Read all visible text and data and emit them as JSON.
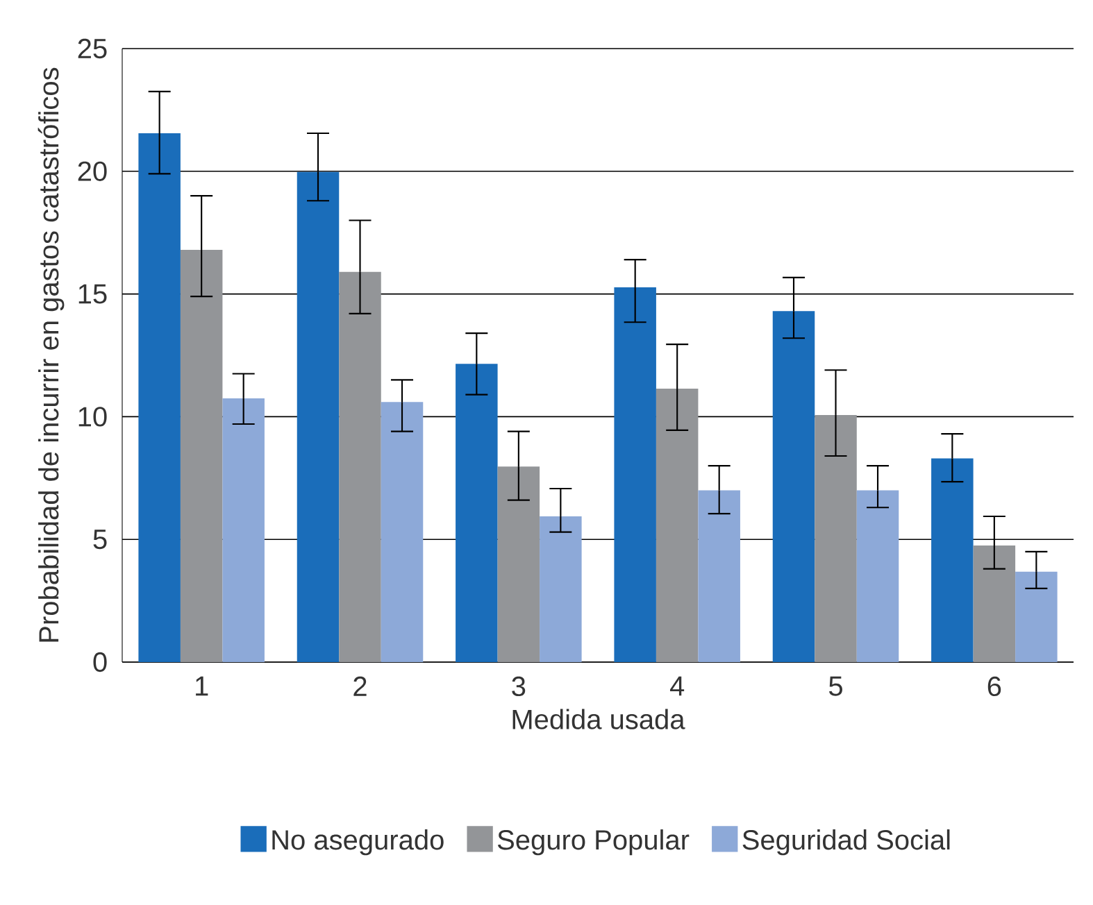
{
  "chart_data": {
    "type": "bar",
    "xlabel": "Medida usada",
    "ylabel": "Probabilidad de incurrir en gastos catastróficos",
    "categories": [
      "1",
      "2",
      "3",
      "4",
      "5",
      "6"
    ],
    "ylim": [
      0,
      25
    ],
    "yticks": [
      0,
      5,
      10,
      15,
      20,
      25
    ],
    "grid": "y",
    "legend": "bottom",
    "series": [
      {
        "name": "No asegurado",
        "color": "#1a6dba",
        "values": [
          21.55,
          19.97,
          12.15,
          15.27,
          14.3,
          8.3
        ],
        "errors": [
          [
            19.9,
            23.25
          ],
          [
            18.8,
            21.55
          ],
          [
            10.9,
            13.4
          ],
          [
            13.85,
            16.4
          ],
          [
            13.2,
            15.67
          ],
          [
            7.35,
            9.3
          ]
        ]
      },
      {
        "name": "Seguro Popular",
        "color": "#939598",
        "values": [
          16.8,
          15.9,
          7.97,
          11.14,
          10.07,
          4.75
        ],
        "errors": [
          [
            14.9,
            19.0
          ],
          [
            14.2,
            18.0
          ],
          [
            6.6,
            9.4
          ],
          [
            9.45,
            12.95
          ],
          [
            8.4,
            11.9
          ],
          [
            3.8,
            5.94
          ]
        ]
      },
      {
        "name": "Seguridad Social",
        "color": "#8da9d8",
        "values": [
          10.75,
          10.6,
          5.94,
          7.0,
          7.0,
          3.68
        ],
        "errors": [
          [
            9.7,
            11.75
          ],
          [
            9.4,
            11.5
          ],
          [
            5.3,
            7.07
          ],
          [
            6.05,
            8.0
          ],
          [
            6.3,
            8.0
          ],
          [
            3.0,
            4.5
          ]
        ]
      }
    ]
  }
}
